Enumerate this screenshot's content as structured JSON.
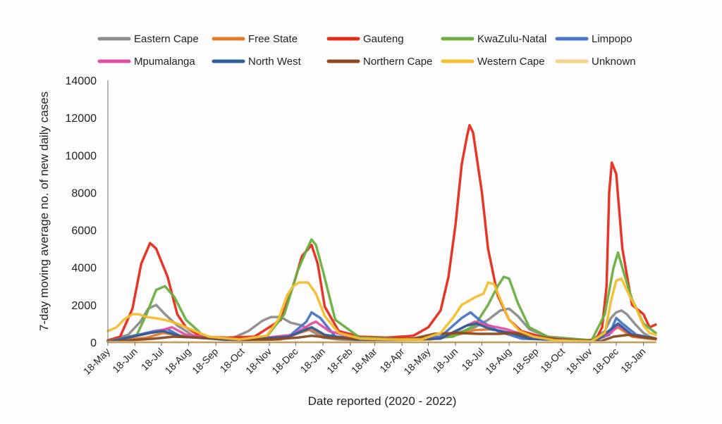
{
  "chart_data": {
    "type": "line",
    "title": "",
    "xlabel": "Date reported (2020 - 2022)",
    "ylabel": "7-day moving average no. of new daily cases",
    "ylim": [
      0,
      14000
    ],
    "yticks": [
      "0",
      "2000",
      "4000",
      "6000",
      "8000",
      "10000",
      "12000",
      "14000"
    ],
    "x_tick_labels": [
      "18-May",
      "18-Jun",
      "18-Jul",
      "18-Aug",
      "18-Sep",
      "18-Oct",
      "18-Nov",
      "18-Dec",
      "18-Jan",
      "18-Feb",
      "18-Mar",
      "18-Apr",
      "18-May",
      "18-Jun",
      "18-Jul",
      "18-Aug",
      "18-Sep",
      "18-Oct",
      "18-Nov",
      "18-Dec",
      "18-Jan"
    ],
    "x_tick_dates": [
      "2020-05-18",
      "2020-06-18",
      "2020-07-18",
      "2020-08-18",
      "2020-09-18",
      "2020-10-18",
      "2020-11-18",
      "2020-12-18",
      "2021-01-18",
      "2021-02-18",
      "2021-03-18",
      "2021-04-18",
      "2021-05-18",
      "2021-06-18",
      "2021-07-18",
      "2021-08-18",
      "2021-09-18",
      "2021-10-18",
      "2021-11-18",
      "2021-12-18",
      "2022-01-18"
    ],
    "xlim": [
      "2020-05-18",
      "2022-02-01"
    ],
    "grid": false,
    "legend_position": "top",
    "series": [
      {
        "name": "Eastern Cape",
        "color": "#8c8c8c",
        "x": [
          "2020-05-18",
          "2020-06-10",
          "2020-06-24",
          "2020-07-03",
          "2020-07-12",
          "2020-07-22",
          "2020-08-05",
          "2020-08-25",
          "2020-10-01",
          "2020-10-25",
          "2020-11-10",
          "2020-11-20",
          "2020-12-01",
          "2020-12-12",
          "2020-12-25",
          "2021-01-05",
          "2021-01-18",
          "2021-02-05",
          "2021-03-01",
          "2021-05-01",
          "2021-06-10",
          "2021-07-10",
          "2021-07-25",
          "2021-08-08",
          "2021-08-18",
          "2021-08-28",
          "2021-09-10",
          "2021-10-05",
          "2021-11-20",
          "2021-12-05",
          "2021-12-12",
          "2021-12-18",
          "2021-12-24",
          "2021-12-30",
          "2022-01-08",
          "2022-01-18",
          "2022-01-25",
          "2022-02-01"
        ],
        "values": [
          100,
          400,
          1100,
          1800,
          2000,
          1500,
          900,
          300,
          100,
          600,
          1150,
          1350,
          1350,
          1050,
          900,
          600,
          250,
          150,
          100,
          150,
          350,
          800,
          1200,
          1700,
          1800,
          1400,
          700,
          200,
          100,
          600,
          1300,
          1600,
          1700,
          1500,
          1000,
          500,
          300,
          200
        ]
      },
      {
        "name": "Free State",
        "color": "#e07b2c",
        "x": [
          "2020-05-18",
          "2020-07-01",
          "2020-07-20",
          "2020-08-10",
          "2020-10-15",
          "2020-12-01",
          "2020-12-25",
          "2021-01-05",
          "2021-01-20",
          "2021-03-01",
          "2021-05-20",
          "2021-06-20",
          "2021-07-10",
          "2021-07-30",
          "2021-08-15",
          "2021-09-10",
          "2021-11-20",
          "2021-12-12",
          "2021-12-20",
          "2022-01-05",
          "2022-02-01"
        ],
        "values": [
          30,
          250,
          500,
          350,
          100,
          150,
          550,
          700,
          350,
          100,
          150,
          400,
          650,
          700,
          500,
          200,
          50,
          600,
          800,
          300,
          150
        ]
      },
      {
        "name": "Gauteng",
        "color": "#e42b1c",
        "x": [
          "2020-05-18",
          "2020-06-01",
          "2020-06-15",
          "2020-06-25",
          "2020-07-05",
          "2020-07-12",
          "2020-07-25",
          "2020-08-05",
          "2020-08-15",
          "2020-09-01",
          "2020-10-01",
          "2020-11-01",
          "2020-12-01",
          "2020-12-15",
          "2020-12-25",
          "2021-01-05",
          "2021-01-12",
          "2021-01-20",
          "2021-02-05",
          "2021-03-01",
          "2021-04-01",
          "2021-05-01",
          "2021-05-18",
          "2021-06-01",
          "2021-06-10",
          "2021-06-18",
          "2021-06-25",
          "2021-07-01",
          "2021-07-04",
          "2021-07-08",
          "2021-07-18",
          "2021-07-25",
          "2021-08-05",
          "2021-08-18",
          "2021-09-01",
          "2021-10-01",
          "2021-11-10",
          "2021-11-25",
          "2021-12-02",
          "2021-12-07",
          "2021-12-10",
          "2021-12-13",
          "2021-12-18",
          "2021-12-25",
          "2022-01-05",
          "2022-01-18",
          "2022-01-25",
          "2022-02-01"
        ],
        "values": [
          100,
          300,
          1800,
          4200,
          5300,
          5000,
          3500,
          1500,
          800,
          300,
          250,
          300,
          1200,
          3000,
          4600,
          5200,
          4200,
          1900,
          600,
          300,
          250,
          350,
          800,
          1700,
          3500,
          6300,
          9500,
          11000,
          11600,
          11200,
          8000,
          5000,
          2500,
          1200,
          600,
          200,
          100,
          150,
          800,
          3000,
          8000,
          9600,
          9000,
          5000,
          2000,
          1500,
          800,
          950
        ]
      },
      {
        "name": "KwaZulu-Natal",
        "color": "#6aaf40",
        "x": [
          "2020-05-18",
          "2020-06-20",
          "2020-07-01",
          "2020-07-12",
          "2020-07-22",
          "2020-08-02",
          "2020-08-15",
          "2020-09-05",
          "2020-10-15",
          "2020-11-15",
          "2020-12-05",
          "2020-12-20",
          "2020-12-30",
          "2021-01-05",
          "2021-01-10",
          "2021-01-18",
          "2021-02-01",
          "2021-03-01",
          "2021-05-01",
          "2021-06-15",
          "2021-07-10",
          "2021-07-25",
          "2021-08-05",
          "2021-08-12",
          "2021-08-18",
          "2021-08-28",
          "2021-09-10",
          "2021-10-01",
          "2021-11-20",
          "2021-12-05",
          "2021-12-15",
          "2021-12-20",
          "2021-12-28",
          "2022-01-05",
          "2022-01-18",
          "2022-02-01"
        ],
        "values": [
          50,
          400,
          1500,
          2800,
          3000,
          2400,
          1200,
          300,
          100,
          300,
          1500,
          3800,
          4900,
          5500,
          5200,
          3800,
          1200,
          250,
          150,
          300,
          900,
          2000,
          3000,
          3500,
          3400,
          2100,
          800,
          300,
          100,
          1500,
          4000,
          4800,
          3500,
          2300,
          1000,
          500
        ]
      },
      {
        "name": "Limpopo",
        "color": "#4a74c9",
        "x": [
          "2020-05-18",
          "2020-07-10",
          "2020-07-25",
          "2020-08-10",
          "2020-10-15",
          "2020-12-10",
          "2020-12-30",
          "2021-01-05",
          "2021-01-15",
          "2021-02-01",
          "2021-04-01",
          "2021-06-01",
          "2021-06-25",
          "2021-07-05",
          "2021-07-15",
          "2021-08-05",
          "2021-09-01",
          "2021-11-20",
          "2021-12-10",
          "2021-12-18",
          "2021-12-25",
          "2022-01-10",
          "2022-02-01"
        ],
        "values": [
          20,
          600,
          700,
          300,
          100,
          300,
          1100,
          1600,
          1300,
          300,
          100,
          300,
          1300,
          1600,
          1200,
          600,
          200,
          50,
          400,
          1300,
          1000,
          400,
          200
        ]
      },
      {
        "name": "Mpumalanga",
        "color": "#e24fa6",
        "x": [
          "2020-05-18",
          "2020-07-15",
          "2020-07-30",
          "2020-08-15",
          "2020-10-15",
          "2020-12-15",
          "2021-01-05",
          "2021-01-10",
          "2021-01-25",
          "2021-03-01",
          "2021-06-01",
          "2021-07-01",
          "2021-07-10",
          "2021-07-25",
          "2021-08-15",
          "2021-09-10",
          "2021-11-20",
          "2021-12-12",
          "2021-12-20",
          "2022-01-05",
          "2022-02-01"
        ],
        "values": [
          20,
          600,
          800,
          400,
          100,
          400,
          1000,
          1100,
          600,
          150,
          200,
          900,
          1100,
          900,
          700,
          300,
          50,
          500,
          900,
          400,
          200
        ]
      },
      {
        "name": "North West",
        "color": "#2f5d94",
        "x": [
          "2020-05-18",
          "2020-07-05",
          "2020-07-20",
          "2020-08-10",
          "2020-10-15",
          "2020-12-10",
          "2021-01-05",
          "2021-01-20",
          "2021-03-01",
          "2021-06-01",
          "2021-07-01",
          "2021-07-12",
          "2021-07-28",
          "2021-08-20",
          "2021-09-10",
          "2021-11-25",
          "2021-12-12",
          "2021-12-20",
          "2022-01-05",
          "2022-02-01"
        ],
        "values": [
          20,
          500,
          600,
          300,
          100,
          300,
          800,
          400,
          100,
          200,
          900,
          1000,
          700,
          500,
          200,
          50,
          700,
          1000,
          400,
          200
        ]
      },
      {
        "name": "Northern Cape",
        "color": "#8b4a1f",
        "x": [
          "2020-05-18",
          "2020-07-10",
          "2020-08-01",
          "2020-09-01",
          "2020-10-15",
          "2020-11-20",
          "2020-12-20",
          "2021-01-05",
          "2021-01-25",
          "2021-03-15",
          "2021-05-01",
          "2021-05-25",
          "2021-06-20",
          "2021-07-15",
          "2021-08-05",
          "2021-08-25",
          "2021-09-10",
          "2021-10-15",
          "2021-11-30",
          "2021-12-15",
          "2022-01-01",
          "2022-01-20",
          "2022-02-01"
        ],
        "values": [
          20,
          200,
          300,
          250,
          150,
          150,
          250,
          350,
          250,
          150,
          200,
          450,
          500,
          450,
          450,
          500,
          350,
          150,
          50,
          300,
          400,
          250,
          200
        ]
      },
      {
        "name": "Western Cape",
        "color": "#f2bf2e",
        "x": [
          "2020-05-18",
          "2020-05-28",
          "2020-06-05",
          "2020-06-15",
          "2020-06-22",
          "2020-07-01",
          "2020-07-10",
          "2020-07-22",
          "2020-08-05",
          "2020-08-20",
          "2020-09-10",
          "2020-10-15",
          "2020-11-15",
          "2020-11-28",
          "2020-12-08",
          "2020-12-15",
          "2020-12-22",
          "2021-01-01",
          "2021-01-10",
          "2021-01-20",
          "2021-02-05",
          "2021-03-01",
          "2021-04-01",
          "2021-05-10",
          "2021-06-01",
          "2021-06-15",
          "2021-06-25",
          "2021-07-10",
          "2021-07-20",
          "2021-07-25",
          "2021-08-01",
          "2021-08-08",
          "2021-08-18",
          "2021-08-30",
          "2021-09-15",
          "2021-10-10",
          "2021-11-20",
          "2021-12-05",
          "2021-12-12",
          "2021-12-18",
          "2021-12-24",
          "2022-01-01",
          "2022-01-10",
          "2022-01-18",
          "2022-01-25",
          "2022-02-01"
        ],
        "values": [
          600,
          800,
          1200,
          1500,
          1500,
          1350,
          1300,
          1200,
          1000,
          700,
          300,
          150,
          350,
          1200,
          2500,
          3000,
          3200,
          3200,
          2600,
          1400,
          500,
          200,
          150,
          150,
          500,
          1300,
          2000,
          2400,
          2600,
          3200,
          3100,
          2300,
          1200,
          600,
          300,
          100,
          50,
          500,
          2200,
          3300,
          3400,
          2600,
          1800,
          900,
          500,
          400
        ]
      },
      {
        "name": "Unknown",
        "color": "#f5d28a",
        "x": [
          "2020-05-18",
          "2022-02-01"
        ],
        "values": [
          0,
          0
        ]
      }
    ]
  }
}
